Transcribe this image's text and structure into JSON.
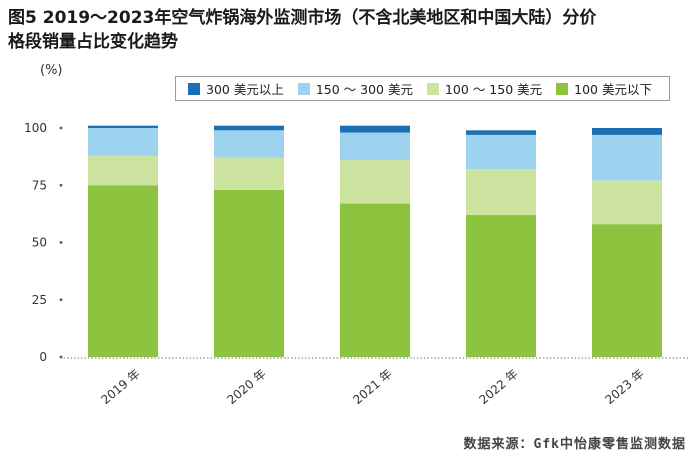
{
  "figure": {
    "title_line1": "图5  2019～2023年空气炸锅海外监测市场（不含北美地区和中国大陆）分价",
    "title_line2": "格段销量占比变化趋势",
    "unit": "(%)",
    "source": "数据来源：Gfk中怡康零售监测数据"
  },
  "legend": {
    "items": [
      {
        "label": "300 美元以上",
        "color": "#1a6fb5"
      },
      {
        "label": "150 ～ 300 美元",
        "color": "#9ed3ef"
      },
      {
        "label": "100 ～ 150 美元",
        "color": "#cde4a0"
      },
      {
        "label": "100 美元以下",
        "color": "#8dc43f"
      }
    ]
  },
  "chart_data": {
    "type": "bar",
    "stacked": true,
    "categories": [
      "2019 年",
      "2020 年",
      "2021 年",
      "2022 年",
      "2023 年"
    ],
    "ylim": [
      0,
      100
    ],
    "yticks": [
      0,
      25,
      50,
      75,
      100
    ],
    "ytick_labels": [
      "0",
      "25",
      "50",
      "75",
      "100"
    ],
    "grid": false,
    "legend_position": "top",
    "series": [
      {
        "name": "100 美元以下",
        "color": "#8dc43f",
        "values": [
          75,
          73,
          67,
          62,
          58
        ]
      },
      {
        "name": "100 ～ 150 美元",
        "color": "#cde4a0",
        "values": [
          13,
          14,
          19,
          20,
          19
        ]
      },
      {
        "name": "150 ～ 300 美元",
        "color": "#9ed3ef",
        "values": [
          12,
          12,
          12,
          15,
          20
        ]
      },
      {
        "name": "300 美元以上",
        "color": "#1a6fb5",
        "values": [
          1,
          2,
          3,
          2,
          3
        ]
      }
    ]
  }
}
